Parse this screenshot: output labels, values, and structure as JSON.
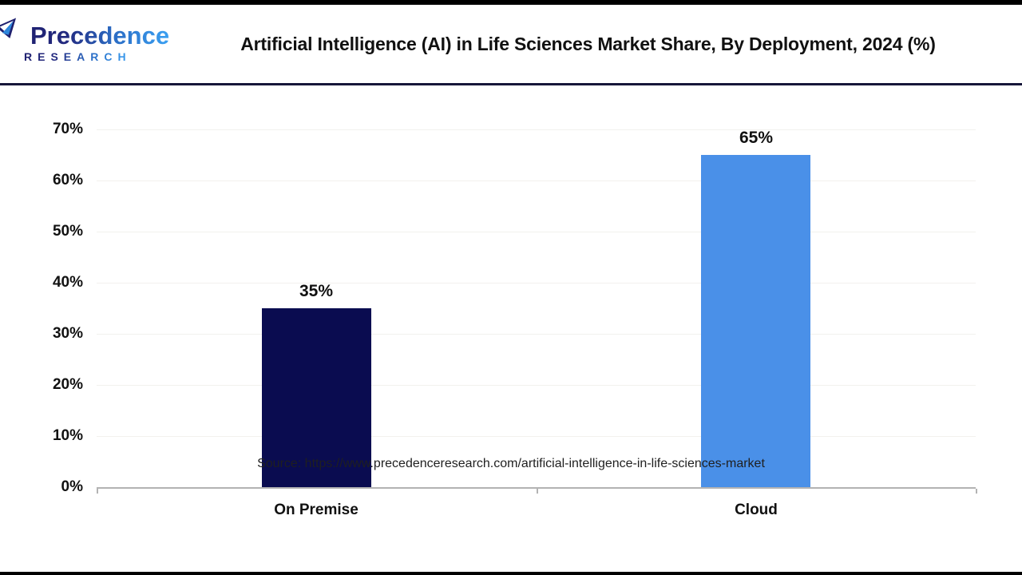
{
  "header": {
    "logo": {
      "name": "Precedence",
      "subtitle": "RESEARCH",
      "icon": "sail-leaf-icon",
      "color_dark": "#1E1F6E",
      "color_light": "#3AA0F2"
    },
    "title": "Artificial Intelligence (AI) in Life Sciences Market Share, By Deployment, 2024 (%)"
  },
  "chart_data": {
    "type": "bar",
    "title": "Artificial Intelligence (AI) in Life Sciences Market Share, By Deployment, 2024 (%)",
    "categories": [
      "On Premise",
      "Cloud"
    ],
    "values": [
      35,
      65
    ],
    "data_labels": [
      "35%",
      "65%"
    ],
    "bar_colors": [
      "#0A0C50",
      "#4A90E8"
    ],
    "xlabel": "",
    "ylabel": "",
    "ylim": [
      0,
      70
    ],
    "yticks": [
      0,
      10,
      20,
      30,
      40,
      50,
      60,
      70
    ],
    "ytick_labels": [
      "0%",
      "10%",
      "20%",
      "30%",
      "40%",
      "50%",
      "60%",
      "70%"
    ],
    "grid": true,
    "legend": "none",
    "axis_color": "#B3B3B3",
    "grid_color": "#F2F1EE"
  },
  "footer": {
    "source": "Source: https://www.precedenceresearch.com/artificial-intelligence-in-life-sciences-market"
  }
}
